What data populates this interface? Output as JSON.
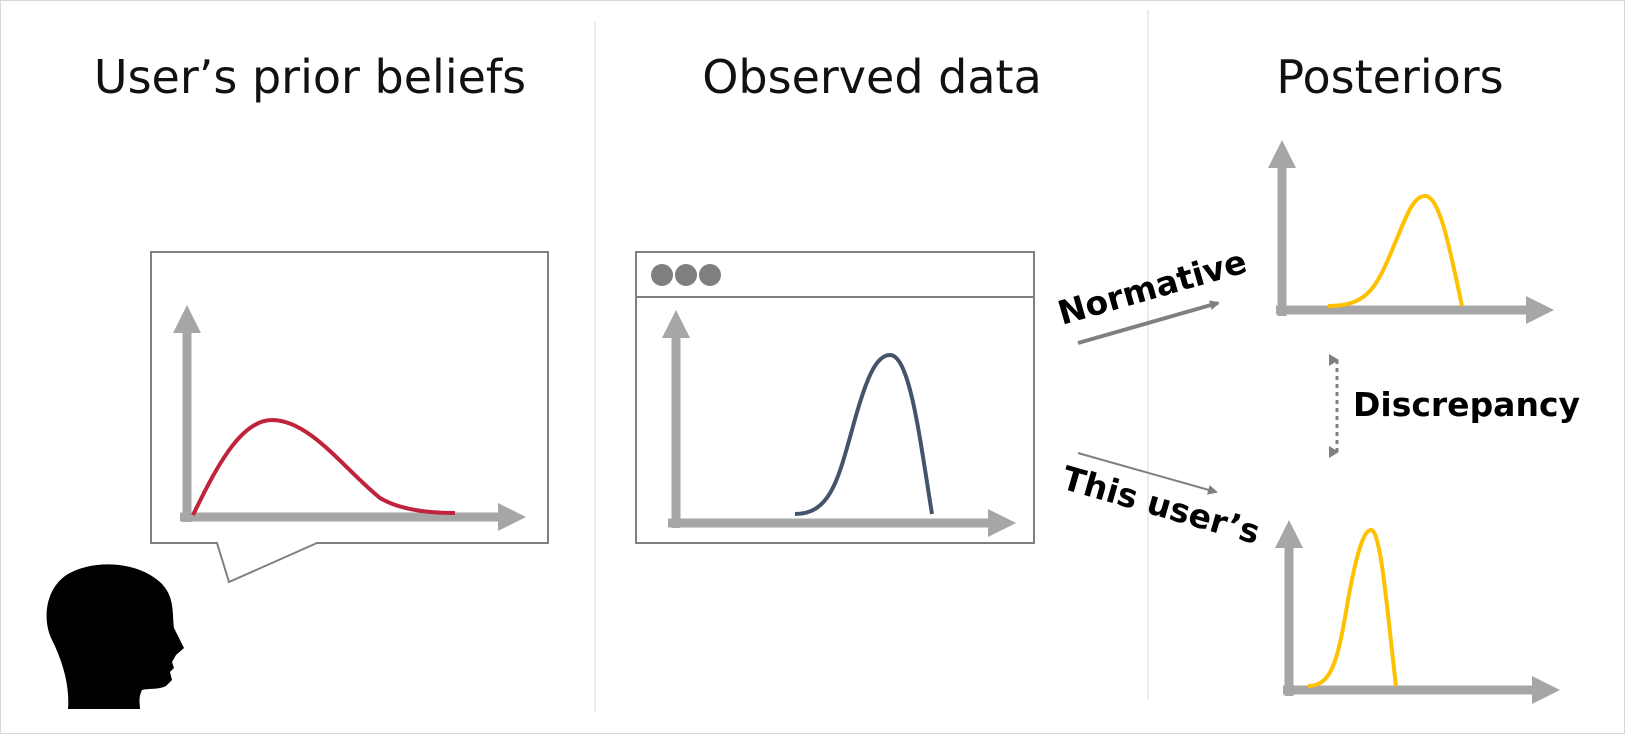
{
  "titles": {
    "prior": "User’s prior beliefs",
    "observed": "Observed data",
    "posteriors": "Posteriors"
  },
  "arrows": {
    "normative": "Normative",
    "users": "This user’s"
  },
  "discrepancy": "Discrepancy",
  "colors": {
    "prior_curve": "#c0243c",
    "data_curve": "#44546a",
    "posterior_curve": "#ffc000",
    "axis": "#a6a6a6",
    "frame": "#808080"
  },
  "icons": {
    "user": "person-head-icon",
    "window_dots": "window-controls-icon"
  }
}
